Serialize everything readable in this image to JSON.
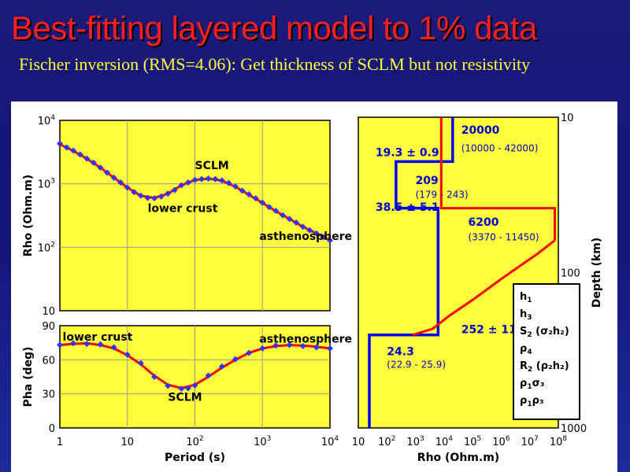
{
  "slide": {
    "title": "Best-fitting layered model to 1% data",
    "subtitle": "Fischer inversion (RMS=4.06): Get thickness of SCLM but not resistivity"
  },
  "colors": {
    "background": "#15157a",
    "title": "#ff1f1f",
    "subtitle": "#ffff33",
    "plot_bg": "#ffff3c",
    "model_curve": "#ff0000",
    "data_points": "#3333ff",
    "bounds_model": "#0000ff"
  },
  "chart_data": [
    {
      "type": "scatter",
      "panel": "apparent-resistivity",
      "xlabel": "",
      "ylabel": "Rho (Ohm.m)",
      "xscale": "log",
      "yscale": "log",
      "xlim": [
        1,
        10000
      ],
      "ylim": [
        10,
        10000
      ],
      "y_ticks": [
        {
          "value": 10,
          "base": "10",
          "exp": ""
        },
        {
          "value": 100,
          "base": "10",
          "exp": "2"
        },
        {
          "value": 1000,
          "base": "10",
          "exp": "3"
        },
        {
          "value": 10000,
          "base": "10",
          "exp": "4"
        }
      ],
      "annotations": [
        {
          "text": "SCLM",
          "x": 100,
          "y": 1700
        },
        {
          "text": "lower crust",
          "x": 20,
          "y": 360
        },
        {
          "text": "asthenosphere",
          "x": 900,
          "y": 130
        }
      ],
      "series": [
        {
          "name": "",
          "role": "model",
          "x": [
            1,
            1.58,
            2.51,
            3.98,
            6.31,
            10,
            15.8,
            25.1,
            39.8,
            63.1,
            100,
            158,
            251,
            398,
            631,
            1000,
            1580,
            2510,
            3980,
            6310,
            10000
          ],
          "y": [
            4200,
            3300,
            2500,
            1800,
            1250,
            870,
            650,
            600,
            700,
            950,
            1150,
            1210,
            1120,
            900,
            670,
            500,
            370,
            280,
            210,
            165,
            130
          ]
        },
        {
          "name": "",
          "role": "data",
          "x": [
            1,
            1.26,
            1.58,
            2,
            2.51,
            3.16,
            3.98,
            5.01,
            6.31,
            7.94,
            10,
            12.6,
            15.8,
            20,
            25.1,
            31.6,
            39.8,
            50.1,
            63.1,
            79.4,
            100,
            126,
            158,
            200,
            251,
            316,
            398,
            501,
            631,
            794,
            1000,
            1260,
            1580,
            2000,
            2510,
            3160,
            3980,
            5010,
            6310,
            7940,
            10000
          ],
          "y": [
            4300,
            3750,
            3350,
            2900,
            2500,
            2150,
            1800,
            1500,
            1250,
            1050,
            870,
            740,
            650,
            600,
            590,
            630,
            700,
            800,
            950,
            1050,
            1150,
            1190,
            1210,
            1190,
            1130,
            1030,
            910,
            780,
            680,
            590,
            505,
            430,
            375,
            320,
            280,
            245,
            210,
            185,
            165,
            145,
            128
          ]
        }
      ]
    },
    {
      "type": "scatter",
      "panel": "phase",
      "xlabel": "Period (s)",
      "ylabel": "Pha (deg)",
      "xscale": "log",
      "xlim": [
        1,
        10000
      ],
      "ylim": [
        0,
        90
      ],
      "x_ticks": [
        {
          "value": 1,
          "base": "1",
          "exp": ""
        },
        {
          "value": 10,
          "base": "10",
          "exp": ""
        },
        {
          "value": 100,
          "base": "10",
          "exp": "2"
        },
        {
          "value": 1000,
          "base": "10",
          "exp": "3"
        },
        {
          "value": 10000,
          "base": "10",
          "exp": "4"
        }
      ],
      "y_ticks": [
        0,
        30,
        60,
        90
      ],
      "annotations": [
        {
          "text": "lower crust",
          "x": 1.1,
          "y": 77
        },
        {
          "text": "asthenosphere",
          "x": 900,
          "y": 75
        },
        {
          "text": "SCLM",
          "x": 40,
          "y": 24
        }
      ],
      "series": [
        {
          "name": "",
          "role": "model",
          "x": [
            1,
            1.58,
            2.51,
            3.98,
            6.31,
            10,
            15.8,
            25.1,
            39.8,
            63.1,
            100,
            158,
            251,
            398,
            631,
            1000,
            1580,
            2510,
            3980,
            6310,
            10000
          ],
          "y": [
            73,
            74,
            74.5,
            73,
            70,
            64,
            56,
            46,
            38,
            35,
            38,
            45,
            53,
            60,
            66,
            70,
            72,
            73,
            72.5,
            71.5,
            70
          ]
        },
        {
          "name": "",
          "role": "data",
          "x": [
            1,
            1.58,
            2.51,
            3.98,
            6.31,
            10,
            15.8,
            25.1,
            39.8,
            63.1,
            79.4,
            100,
            158,
            251,
            398,
            631,
            1000,
            1580,
            2510,
            3980,
            6310,
            10000
          ],
          "y": [
            73,
            74.5,
            74,
            73.5,
            71,
            64.5,
            57,
            45,
            37,
            34.5,
            35,
            37.5,
            46,
            54,
            60.5,
            66,
            70,
            72.5,
            73,
            72,
            71,
            70
          ]
        }
      ]
    },
    {
      "type": "line",
      "panel": "layered-model",
      "xlabel": "Rho (Ohm.m)",
      "ylabel": "Depth (km)",
      "xscale": "log",
      "yscale": "log",
      "xlim": [
        10,
        100000000
      ],
      "ylim": [
        10,
        1000
      ],
      "y_inverted": true,
      "x_ticks": [
        {
          "value": 10,
          "base": "10",
          "exp": ""
        },
        {
          "value": 100,
          "base": "10",
          "exp": "2"
        },
        {
          "value": 1000,
          "base": "10",
          "exp": "3"
        },
        {
          "value": 10000,
          "base": "10",
          "exp": "4"
        },
        {
          "value": 100000,
          "base": "10",
          "exp": "5"
        },
        {
          "value": 1000000,
          "base": "10",
          "exp": "6"
        },
        {
          "value": 10000000,
          "base": "10",
          "exp": "7"
        },
        {
          "value": 100000000,
          "base": "10",
          "exp": "8"
        }
      ],
      "y_ticks": [
        {
          "value": 10,
          "text": "10"
        },
        {
          "value": 100,
          "text": "100"
        },
        {
          "value": 1000,
          "text": "1000"
        }
      ],
      "series": [
        {
          "name": "",
          "role": "bounds-model",
          "style": "step",
          "points": [
            [
              20000,
              10
            ],
            [
              20000,
              19.3
            ],
            [
              209,
              19.3
            ],
            [
              209,
              38.5
            ],
            [
              6200,
              38.5
            ],
            [
              6200,
              252
            ],
            [
              24.3,
              252
            ],
            [
              24.3,
              1000
            ]
          ]
        },
        {
          "name": "",
          "role": "true-model",
          "style": "step",
          "points": [
            [
              8000,
              10
            ],
            [
              8000,
              38.5
            ],
            [
              75000000,
              38.5
            ],
            [
              75000000,
              62
            ]
          ]
        },
        {
          "name": "",
          "role": "gradient",
          "points": [
            [
              75000000,
              62
            ],
            [
              20000000,
              75
            ],
            [
              1000000,
              110
            ],
            [
              100000,
              150
            ],
            [
              15000,
              190
            ],
            [
              4000,
              230
            ],
            [
              800,
              252
            ]
          ]
        }
      ],
      "annotations": [
        {
          "text": "20000",
          "style": "value",
          "x": 40000,
          "y": 12.8
        },
        {
          "text": "(10000 - 42000)",
          "style": "range",
          "x": 40000,
          "y": 16.6
        },
        {
          "text": "19.3 ± 0.9",
          "style": "value",
          "x": 40,
          "y": 17.8
        },
        {
          "text": "209",
          "style": "value",
          "x": 1000,
          "y": 27
        },
        {
          "text": "(179 - 243)",
          "style": "range",
          "x": 1000,
          "y": 33
        },
        {
          "text": "38.5 ± 5.1",
          "style": "value",
          "x": 40,
          "y": 40
        },
        {
          "text": "6200",
          "style": "value",
          "x": 70000,
          "y": 50
        },
        {
          "text": "(3370 - 11450)",
          "style": "range",
          "x": 70000,
          "y": 62
        },
        {
          "text": "252 ± 11",
          "style": "value",
          "x": 40000,
          "y": 246
        },
        {
          "text": "24.3",
          "style": "value",
          "x": 100,
          "y": 340
        },
        {
          "text": "(22.9 - 25.9)",
          "style": "range",
          "x": 100,
          "y": 410
        }
      ],
      "legend": {
        "placement": "right",
        "items": [
          {
            "base": "h",
            "sub": "1",
            "rest": ""
          },
          {
            "base": "h",
            "sub": "3",
            "rest": ""
          },
          {
            "base": "S",
            "sub": "2",
            "rest": " (σ₂h₂)"
          },
          {
            "base": "ρ",
            "sub": "4",
            "rest": ""
          },
          {
            "base": "R",
            "sub": "2",
            "rest": " (ρ₂h₂)"
          },
          {
            "base": "ρ",
            "sub": "1",
            "rest": "σ₃"
          },
          {
            "base": "ρ",
            "sub": "1",
            "rest": "ρ₃"
          }
        ]
      }
    }
  ]
}
